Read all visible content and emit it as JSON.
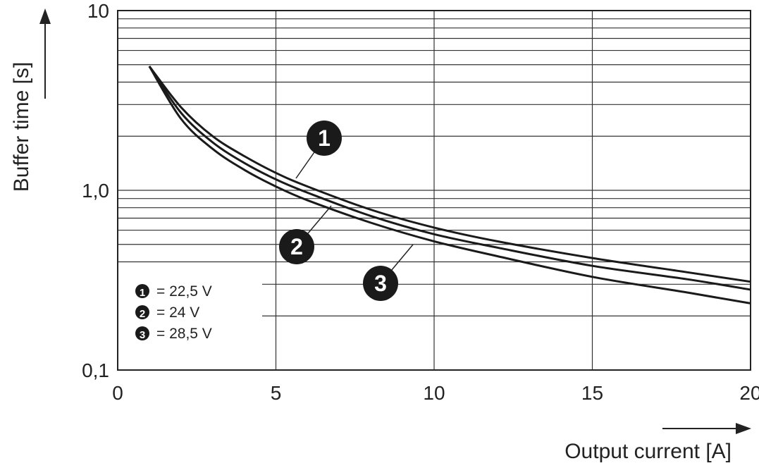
{
  "chart_data": {
    "type": "line",
    "xlabel": "Output current [A]",
    "ylabel": "Buffer time [s]",
    "xlim": [
      0,
      20
    ],
    "ylim": [
      0.1,
      10
    ],
    "yscale": "log",
    "grid": true,
    "x_ticks": [
      0,
      5,
      10,
      15,
      20
    ],
    "x_tick_labels": [
      "0",
      "5",
      "10",
      "15",
      "20"
    ],
    "y_ticks": [
      0.1,
      1,
      10
    ],
    "y_tick_labels": [
      "0,1",
      "1,0",
      "10"
    ],
    "legend": {
      "placement": "bottom-left",
      "entries": [
        {
          "marker": "1",
          "text": "= 22,5 V"
        },
        {
          "marker": "2",
          "text": "= 24 V"
        },
        {
          "marker": "3",
          "text": "= 28,5 V"
        }
      ]
    },
    "series": [
      {
        "marker": "1",
        "x": [
          1,
          2,
          3,
          4,
          5,
          6,
          8,
          10,
          12,
          15,
          18,
          20
        ],
        "y": [
          4.9,
          2.9,
          2.0,
          1.55,
          1.25,
          1.05,
          0.78,
          0.62,
          0.52,
          0.42,
          0.35,
          0.31
        ]
      },
      {
        "marker": "2",
        "x": [
          1,
          2,
          3,
          4,
          5,
          6,
          8,
          10,
          12,
          15,
          18,
          20
        ],
        "y": [
          4.9,
          2.7,
          1.85,
          1.42,
          1.15,
          0.97,
          0.72,
          0.57,
          0.48,
          0.38,
          0.32,
          0.28
        ]
      },
      {
        "marker": "3",
        "x": [
          1,
          2,
          3,
          4,
          5,
          6,
          8,
          10,
          12,
          15,
          18,
          20
        ],
        "y": [
          4.9,
          2.5,
          1.7,
          1.3,
          1.05,
          0.88,
          0.66,
          0.52,
          0.43,
          0.33,
          0.27,
          0.235
        ]
      }
    ]
  }
}
